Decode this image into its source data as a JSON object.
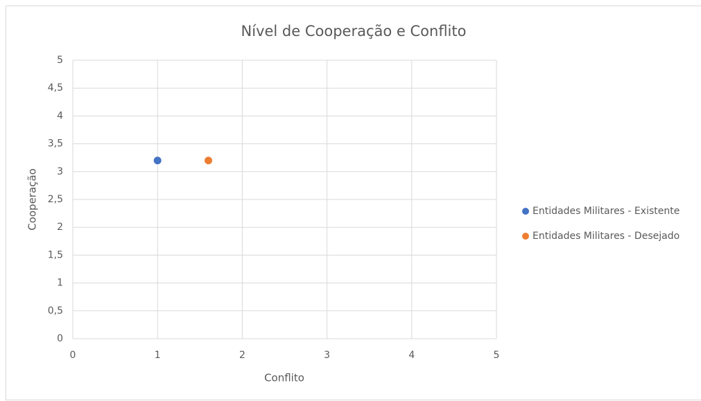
{
  "chart_data": {
    "type": "scatter",
    "title": "Nível de Cooperação e Conflito",
    "xlabel": "Conflito",
    "ylabel": "Cooperação",
    "series": [
      {
        "name": "Entidades Militares - Existente",
        "color": "#4472c4",
        "x": [
          1
        ],
        "values": [
          3.2
        ]
      },
      {
        "name": "Entidades Militares - Desejado",
        "color": "#ed7d31",
        "x": [
          1.6
        ],
        "values": [
          3.2
        ]
      }
    ],
    "xlim": [
      0,
      5
    ],
    "xticks": [
      0,
      1,
      2,
      3,
      4,
      5
    ],
    "ylim": [
      0,
      5
    ],
    "yticks": [
      0,
      {
        "value": 0.5,
        "label": "0,5"
      },
      1,
      {
        "value": 1.5,
        "label": "1,5"
      },
      2,
      {
        "value": 2.5,
        "label": "2,5"
      },
      3,
      {
        "value": 3.5,
        "label": "3,5"
      },
      4,
      {
        "value": 4.5,
        "label": "4,5"
      },
      5
    ],
    "grid": true,
    "legend": "right"
  }
}
